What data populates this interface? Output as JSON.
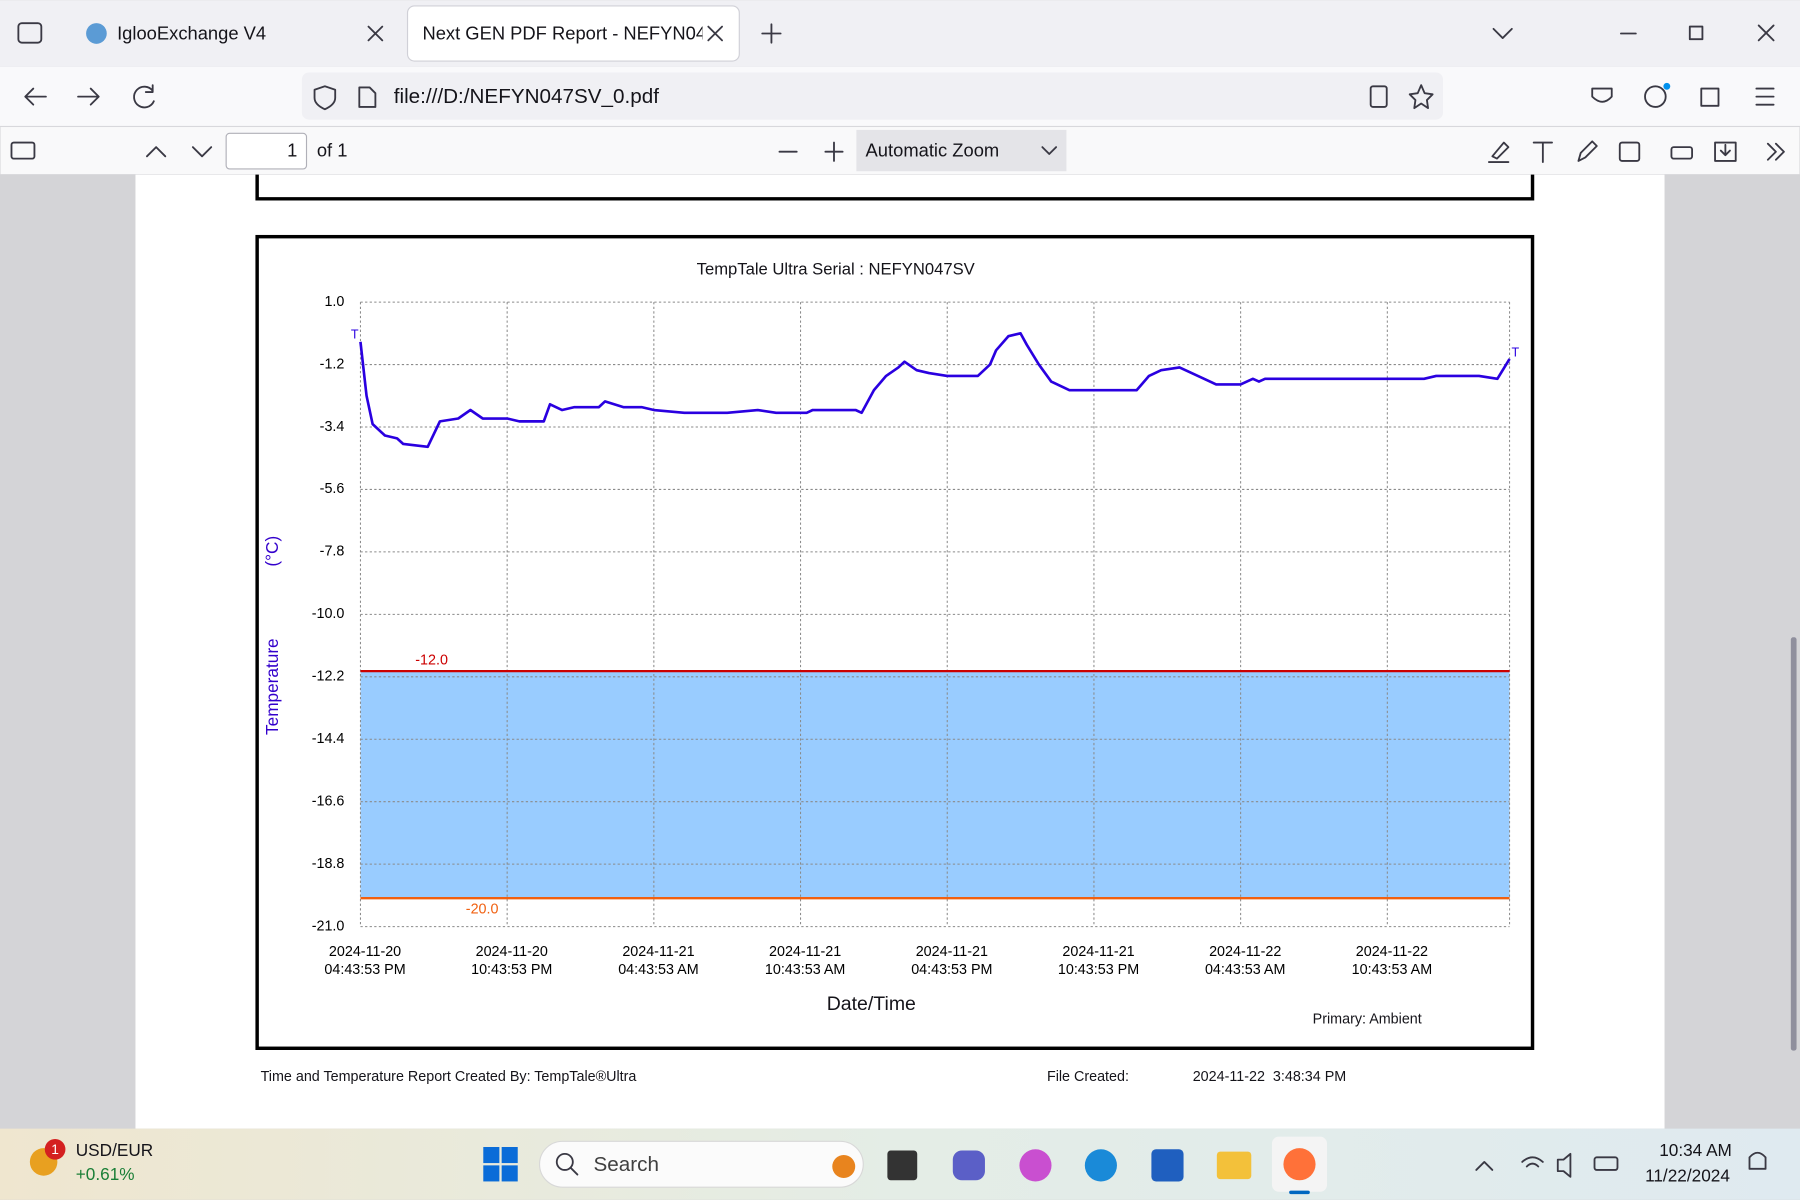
{
  "browser": {
    "tabs": [
      "IglooExchange V4",
      "Next GEN PDF Report - NEFYN047S"
    ],
    "url": "file:///D:/NEFYN047SV_0.pdf"
  },
  "pdf_toolbar": {
    "page_number": "1",
    "page_count": "of 1",
    "zoom": "Automatic Zoom"
  },
  "chart_data": {
    "type": "line",
    "title": "TempTale Ultra  Serial : NEFYN047SV",
    "y_label": "Temperature",
    "y_unit": "(°C)",
    "x_label": "Date/Time",
    "note": "Primary: Ambient",
    "end_marker": "T",
    "color": "#2a00e0",
    "grid": true,
    "band_color": "#99ccff",
    "thresholds": [
      {
        "value": -12,
        "label": "-12.0",
        "color": "#cc0000"
      },
      {
        "value": -20,
        "label": "-20.0",
        "color": "#f06010"
      }
    ],
    "ylim": [
      -21,
      1
    ],
    "yticks": [
      {
        "value": 1,
        "label": "1.0"
      },
      -1.2,
      -3.4,
      -5.6,
      -7.8,
      {
        "value": -10,
        "label": "-10.0"
      },
      -12.2,
      -14.4,
      -16.6,
      -18.8,
      {
        "value": -21,
        "label": "-21.0"
      }
    ],
    "xlim": [
      "2024-11-20T16:43:53",
      "2024-11-22T15:43:53"
    ],
    "xticks": [
      {
        "value": "2024-11-20T16:43:53",
        "label": "2024-11-20 04:43:53 PM"
      },
      {
        "value": "2024-11-20T22:43:53",
        "label": "2024-11-20 10:43:53 PM"
      },
      {
        "value": "2024-11-21T04:43:53",
        "label": "2024-11-21 04:43:53 AM"
      },
      {
        "value": "2024-11-21T10:43:53",
        "label": "2024-11-21 10:43:53 AM"
      },
      {
        "value": "2024-11-21T16:43:53",
        "label": "2024-11-21 04:43:53 PM"
      },
      {
        "value": "2024-11-21T22:43:53",
        "label": "2024-11-21 10:43:53 PM"
      },
      {
        "value": "2024-11-22T04:43:53",
        "label": "2024-11-22 04:43:53 AM"
      },
      {
        "value": "2024-11-22T10:43:53",
        "label": "2024-11-22 10:43:53 AM"
      }
    ],
    "x": [
      "2024-11-20T16:43:53",
      "2024-11-20T16:58:53",
      "2024-11-20T17:13:53",
      "2024-11-20T17:43:53",
      "2024-11-20T18:13:53",
      "2024-11-20T18:28:53",
      "2024-11-20T19:28:53",
      "2024-11-20T19:58:53",
      "2024-11-20T20:43:53",
      "2024-11-20T21:13:53",
      "2024-11-20T21:43:53",
      "2024-11-20T22:43:53",
      "2024-11-20T23:13:53",
      "2024-11-21T00:13:53",
      "2024-11-21T00:28:53",
      "2024-11-21T00:58:53",
      "2024-11-21T01:28:53",
      "2024-11-21T02:28:53",
      "2024-11-21T02:43:53",
      "2024-11-21T03:28:53",
      "2024-11-21T04:13:53",
      "2024-11-21T04:43:53",
      "2024-11-21T05:58:53",
      "2024-11-21T07:43:53",
      "2024-11-21T08:58:53",
      "2024-11-21T09:43:53",
      "2024-11-21T10:58:53",
      "2024-11-21T11:13:53",
      "2024-11-21T12:58:53",
      "2024-11-21T13:13:53",
      "2024-11-21T13:43:53",
      "2024-11-21T14:13:53",
      "2024-11-21T14:43:53",
      "2024-11-21T14:58:53",
      "2024-11-21T15:28:53",
      "2024-11-21T15:58:53",
      "2024-11-21T16:43:53",
      "2024-11-21T17:58:53",
      "2024-11-21T18:28:53",
      "2024-11-21T18:43:53",
      "2024-11-21T19:13:53",
      "2024-11-21T19:43:53",
      "2024-11-21T19:58:53",
      "2024-11-21T20:28:53",
      "2024-11-21T20:58:53",
      "2024-11-21T21:43:53",
      "2024-11-22T00:28:53",
      "2024-11-22T00:58:53",
      "2024-11-22T01:28:53",
      "2024-11-22T02:13:53",
      "2024-11-22T02:58:53",
      "2024-11-22T03:43:53",
      "2024-11-22T04:43:53",
      "2024-11-22T05:13:53",
      "2024-11-22T05:28:53",
      "2024-11-22T05:43:53",
      "2024-11-22T12:13:53",
      "2024-11-22T12:43:53",
      "2024-11-22T14:28:53",
      "2024-11-22T15:13:53",
      "2024-11-22T15:43:53"
    ],
    "values": [
      -0.4,
      -2.3,
      -3.3,
      -3.7,
      -3.8,
      -4.0,
      -4.1,
      -3.2,
      -3.1,
      -2.8,
      -3.1,
      -3.1,
      -3.2,
      -3.2,
      -2.6,
      -2.8,
      -2.7,
      -2.7,
      -2.5,
      -2.7,
      -2.7,
      -2.8,
      -2.9,
      -2.9,
      -2.8,
      -2.9,
      -2.9,
      -2.8,
      -2.8,
      -2.9,
      -2.1,
      -1.6,
      -1.3,
      -1.1,
      -1.4,
      -1.5,
      -1.6,
      -1.6,
      -1.2,
      -0.7,
      -0.2,
      -0.1,
      -0.5,
      -1.2,
      -1.8,
      -2.1,
      -2.1,
      -1.6,
      -1.4,
      -1.3,
      -1.6,
      -1.9,
      -1.9,
      -1.7,
      -1.8,
      -1.7,
      -1.7,
      -1.6,
      -1.6,
      -1.7,
      -1.0
    ]
  },
  "report_footer": {
    "created_by": "Time and Temperature Report Created By:  TempTale®Ultra",
    "file_created_label": "File Created:",
    "file_created": "2024-11-22  3:48:34 PM"
  },
  "taskbar": {
    "widget_badge": "1",
    "widget_title": "USD/EUR",
    "widget_value": "+0.61%",
    "search": "Search",
    "time": "10:34 AM",
    "date": "11/22/2024"
  }
}
